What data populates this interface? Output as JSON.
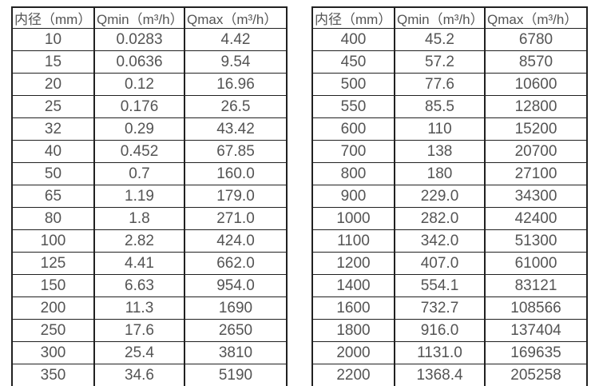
{
  "columns": [
    "内径（mm）",
    "Qmin（m³/h）",
    "Qmax（m³/h）"
  ],
  "tables": [
    {
      "name": "small-diameters",
      "rows": [
        [
          "10",
          "0.0283",
          "4.42"
        ],
        [
          "15",
          "0.0636",
          "9.54"
        ],
        [
          "20",
          "0.12",
          "16.96"
        ],
        [
          "25",
          "0.176",
          "26.5"
        ],
        [
          "32",
          "0.29",
          "43.42"
        ],
        [
          "40",
          "0.452",
          "67.85"
        ],
        [
          "50",
          "0.7",
          "160.0"
        ],
        [
          "65",
          "1.19",
          "179.0"
        ],
        [
          "80",
          "1.8",
          "271.0"
        ],
        [
          "100",
          "2.82",
          "424.0"
        ],
        [
          "125",
          "4.41",
          "662.0"
        ],
        [
          "150",
          "6.63",
          "954.0"
        ],
        [
          "200",
          "11.3",
          "1690"
        ],
        [
          "250",
          "17.6",
          "2650"
        ],
        [
          "300",
          "25.4",
          "3810"
        ],
        [
          "350",
          "34.6",
          "5190"
        ]
      ]
    },
    {
      "name": "large-diameters",
      "rows": [
        [
          "400",
          "45.2",
          "6780"
        ],
        [
          "450",
          "57.2",
          "8570"
        ],
        [
          "500",
          "77.6",
          "10600"
        ],
        [
          "550",
          "85.5",
          "12800"
        ],
        [
          "600",
          "110",
          "15200"
        ],
        [
          "700",
          "138",
          "20700"
        ],
        [
          "800",
          "180",
          "27100"
        ],
        [
          "900",
          "229.0",
          "34300"
        ],
        [
          "1000",
          "282.0",
          "42400"
        ],
        [
          "1100",
          "342.0",
          "51300"
        ],
        [
          "1200",
          "407.0",
          "61000"
        ],
        [
          "1400",
          "554.1",
          "83121"
        ],
        [
          "1600",
          "732.7",
          "108566"
        ],
        [
          "1800",
          "916.0",
          "137404"
        ],
        [
          "2000",
          "1131.0",
          "169635"
        ],
        [
          "2200",
          "1368.4",
          "205258"
        ]
      ]
    }
  ],
  "colors": {
    "text": "#545454",
    "border": "#212121",
    "background": "#ffffff"
  }
}
